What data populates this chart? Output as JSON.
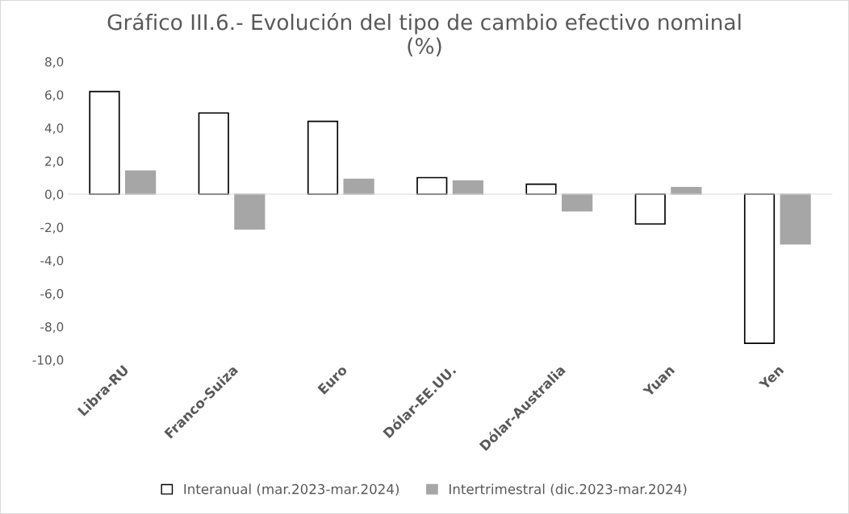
{
  "chart_data": {
    "type": "bar",
    "title": "Gráfico III.6.- Evolución del tipo de cambio efectivo nominal\n(%)",
    "categories": [
      "Libra-RU",
      "Franco-Suiza",
      "Euro",
      "Dólar-EE.UU.",
      "Dólar-Australia",
      "Yuan",
      "Yen"
    ],
    "series": [
      {
        "name": "Interanual (mar.2023-mar.2024)",
        "color": "#ffffff",
        "values": [
          6.2,
          4.9,
          4.4,
          1.0,
          0.6,
          -1.8,
          -9.0
        ]
      },
      {
        "name": "Intertrimestral (dic.2023-mar.2024)",
        "color": "#a6a6a6",
        "values": [
          1.4,
          -2.1,
          0.9,
          0.8,
          -1.0,
          0.4,
          -3.0
        ]
      }
    ],
    "ylim": [
      -10,
      8
    ],
    "yticks": [
      {
        "value": -10,
        "label": "-10,0"
      },
      {
        "value": -8,
        "label": "-8,0"
      },
      {
        "value": -6,
        "label": "-6,0"
      },
      {
        "value": -4,
        "label": "-4,0"
      },
      {
        "value": -2,
        "label": "-2,0"
      },
      {
        "value": 0,
        "label": "0,0"
      },
      {
        "value": 2,
        "label": "2,0"
      },
      {
        "value": 4,
        "label": "4,0"
      },
      {
        "value": 6,
        "label": "6,0"
      },
      {
        "value": 8,
        "label": "8,0"
      }
    ],
    "legend": "bottom"
  }
}
